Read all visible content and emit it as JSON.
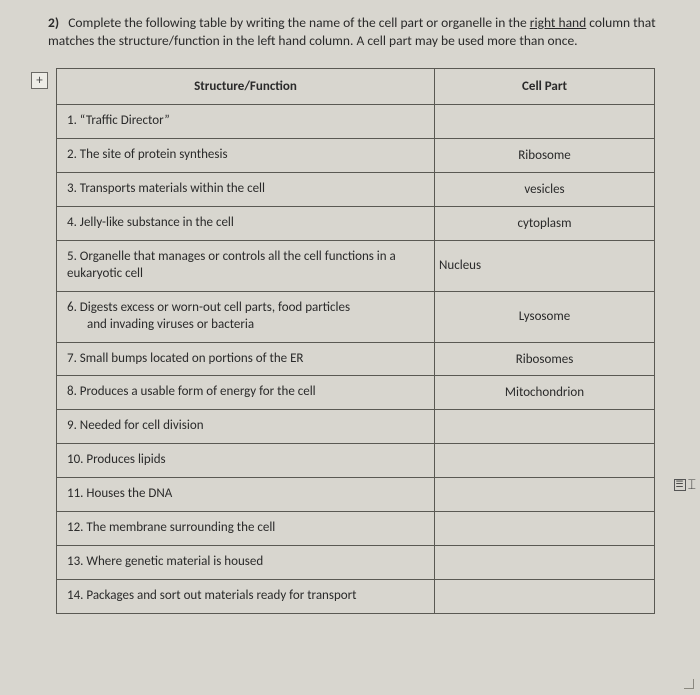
{
  "instructions": {
    "lead": "2)",
    "text_a": "Complete the following table by writing the name of the cell part or organelle in the ",
    "underlined": "right hand",
    "text_b": " column that matches the structure/function in the left hand column.  A cell part may be used more than once."
  },
  "handle_glyph": "+",
  "headers": {
    "left": "Structure/Function",
    "right": "Cell Part"
  },
  "rows": [
    {
      "func": "1.   “Traffic Director”",
      "ans": ""
    },
    {
      "func": "2.   The site of protein synthesis",
      "ans": "Ribosome"
    },
    {
      "func": "3.   Transports materials within the cell",
      "ans": "vesicles"
    },
    {
      "func": "4.   Jelly-like substance in the cell",
      "ans": "cytoplasm"
    },
    {
      "func": "5.   Organelle that manages or controls all the cell functions in a eukaryotic cell",
      "ans": "Nucleus",
      "ans_align": "left"
    },
    {
      "func": "6.   Digests excess or worn-out cell parts, food particles",
      "func_sub": "and invading viruses or bacteria",
      "ans": "Lysosome"
    },
    {
      "func": "7.   Small bumps located on portions of the ER",
      "ans": "Ribosomes"
    },
    {
      "func": "8.  Produces a usable form of energy for the cell",
      "ans": "Mitochondrion"
    },
    {
      "func": "9. Needed for cell division",
      "ans": ""
    },
    {
      "func": "10. Produces lipids",
      "ans": ""
    },
    {
      "func": "11. Houses the DNA",
      "ans": ""
    },
    {
      "func": "12. The membrane surrounding the cell",
      "ans": ""
    },
    {
      "func": "13. Where genetic material is housed",
      "ans": ""
    },
    {
      "func": "14.  Packages and sort out materials ready for transport",
      "ans": ""
    }
  ],
  "side_glyph": {
    "box": "☰",
    "cursor": "⌶"
  }
}
